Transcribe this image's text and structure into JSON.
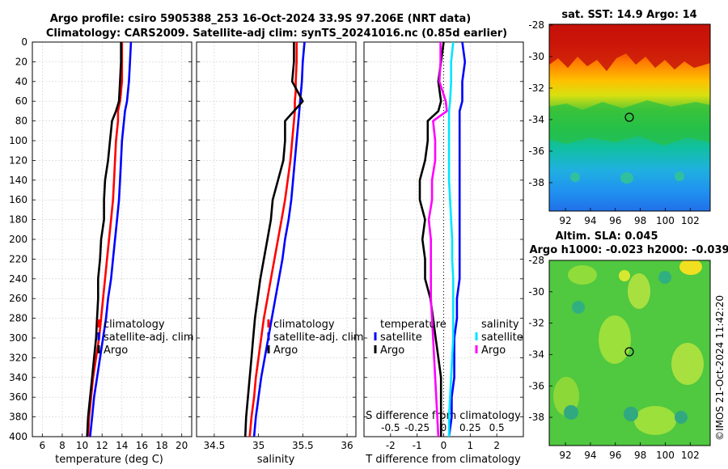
{
  "title_line1": "Argo profile: csiro 5905388_253 16-Oct-2024 33.9S 97.206E (NRT data)",
  "title_line2": "Climatology: CARS2009. Satellite-adj clim: synTS_20241016.nc (0.85d earlier)",
  "footer_credit": "©IMOS 21-Oct-2024 11:42:20",
  "colors": {
    "climatology": "#ff0000",
    "satellite": "#0000ff",
    "argo": "#000000",
    "sal_sat": "#00e5ff",
    "sal_argo": "#ff00ff"
  },
  "depth_ticks": [
    "0",
    "20",
    "40",
    "60",
    "80",
    "100",
    "120",
    "140",
    "160",
    "180",
    "200",
    "220",
    "240",
    "260",
    "280",
    "300",
    "320",
    "340",
    "360",
    "380",
    "400"
  ],
  "chart_data": [
    {
      "type": "line",
      "name": "temperature",
      "xlabel": "temperature (deg C)",
      "ylabel": "depth",
      "xlim": [
        5,
        21
      ],
      "ylim": [
        400,
        0
      ],
      "xticks": [
        "6",
        "8",
        "10",
        "12",
        "14",
        "16",
        "18",
        "20"
      ],
      "xtick_values": [
        6,
        8,
        10,
        12,
        14,
        16,
        18,
        20
      ],
      "legend": [
        "climatology",
        "satellite-adj. clim",
        "Argo"
      ],
      "depth": [
        0,
        20,
        40,
        60,
        70,
        80,
        100,
        120,
        140,
        160,
        180,
        200,
        220,
        240,
        260,
        280,
        300,
        320,
        340,
        360,
        380,
        400
      ],
      "series": [
        {
          "name": "climatology",
          "values": [
            14.0,
            14.0,
            14.0,
            13.8,
            13.6,
            13.6,
            13.4,
            13.3,
            13.2,
            13.1,
            12.9,
            12.7,
            12.5,
            12.3,
            12.1,
            11.9,
            11.7,
            11.4,
            11.1,
            10.9,
            10.7,
            10.6
          ]
        },
        {
          "name": "satellite-adj. clim",
          "values": [
            14.9,
            14.8,
            14.7,
            14.5,
            14.3,
            14.2,
            14.0,
            13.9,
            13.8,
            13.7,
            13.5,
            13.3,
            13.1,
            12.9,
            12.6,
            12.4,
            12.1,
            11.8,
            11.5,
            11.2,
            11.0,
            10.8
          ]
        },
        {
          "name": "Argo",
          "values": [
            13.9,
            13.9,
            13.8,
            13.7,
            13.4,
            13.0,
            12.8,
            12.6,
            12.3,
            12.2,
            12.2,
            11.9,
            11.8,
            11.6,
            11.6,
            11.5,
            11.4,
            11.2,
            11.0,
            10.8,
            10.6,
            10.5
          ]
        }
      ]
    },
    {
      "type": "line",
      "name": "salinity",
      "xlabel": "salinity",
      "xlim": [
        34.3,
        36.1
      ],
      "ylim": [
        400,
        0
      ],
      "xticks": [
        "34.5",
        "35",
        "35.5",
        "36"
      ],
      "xtick_values": [
        34.5,
        35,
        35.5,
        36
      ],
      "legend": [
        "climatology",
        "satellite-adj. clim",
        "Argo"
      ],
      "depth": [
        0,
        20,
        40,
        50,
        60,
        70,
        80,
        100,
        120,
        140,
        160,
        180,
        200,
        220,
        240,
        260,
        280,
        300,
        320,
        340,
        360,
        380,
        400
      ],
      "series": [
        {
          "name": "climatology",
          "values": [
            35.43,
            35.43,
            35.42,
            35.42,
            35.41,
            35.41,
            35.4,
            35.38,
            35.36,
            35.33,
            35.3,
            35.26,
            35.22,
            35.18,
            35.14,
            35.1,
            35.06,
            35.03,
            35.0,
            34.97,
            34.95,
            34.92,
            34.9
          ]
        },
        {
          "name": "satellite-adj. clim",
          "values": [
            35.52,
            35.5,
            35.49,
            35.48,
            35.47,
            35.46,
            35.45,
            35.43,
            35.41,
            35.39,
            35.37,
            35.34,
            35.3,
            35.27,
            35.23,
            35.19,
            35.15,
            35.11,
            35.07,
            35.03,
            35.0,
            34.97,
            34.95
          ]
        },
        {
          "name": "Argo",
          "values": [
            35.4,
            35.4,
            35.38,
            35.44,
            35.5,
            35.4,
            35.3,
            35.3,
            35.28,
            35.22,
            35.16,
            35.14,
            35.1,
            35.06,
            35.02,
            34.99,
            34.96,
            34.94,
            34.92,
            34.9,
            34.88,
            34.86,
            34.85
          ]
        }
      ]
    },
    {
      "type": "line",
      "name": "difference from climatology",
      "xlabel": "T difference from climatology",
      "top_label": "S difference from climatology",
      "xlim": [
        -3,
        3
      ],
      "ylim": [
        400,
        0
      ],
      "xticks": [
        "-2",
        "-1",
        "0",
        "1",
        "2"
      ],
      "xtick_values": [
        -2,
        -1,
        0,
        1,
        2
      ],
      "sticks": [
        "-0.5",
        "-0.25",
        "0",
        "0.25",
        "0.5"
      ],
      "stick_values": [
        -0.5,
        -0.25,
        0,
        0.25,
        0.5
      ],
      "legend_temperature": "temperature",
      "legend_salinity": "salinity",
      "legend": [
        "satellite",
        "Argo",
        "satellite",
        "Argo"
      ],
      "depth": [
        0,
        20,
        40,
        60,
        70,
        80,
        100,
        120,
        140,
        160,
        180,
        200,
        220,
        240,
        260,
        280,
        300,
        320,
        340,
        360,
        380,
        400
      ],
      "series": [
        {
          "name": "T satellite",
          "values": [
            0.7,
            0.8,
            0.7,
            0.7,
            0.6,
            0.6,
            0.6,
            0.6,
            0.6,
            0.6,
            0.6,
            0.6,
            0.6,
            0.6,
            0.5,
            0.5,
            0.4,
            0.4,
            0.4,
            0.3,
            0.3,
            0.2
          ]
        },
        {
          "name": "T Argo",
          "values": [
            0.0,
            -0.1,
            -0.2,
            -0.1,
            -0.2,
            -0.6,
            -0.6,
            -0.7,
            -0.9,
            -0.9,
            -0.7,
            -0.8,
            -0.7,
            -0.7,
            -0.5,
            -0.4,
            -0.3,
            -0.2,
            -0.1,
            -0.1,
            -0.1,
            -0.1
          ]
        },
        {
          "name": "S satellite",
          "values": [
            0.09,
            0.07,
            0.07,
            0.06,
            0.05,
            0.05,
            0.05,
            0.05,
            0.05,
            0.06,
            0.07,
            0.08,
            0.08,
            0.09,
            0.09,
            0.09,
            0.09,
            0.08,
            0.07,
            0.06,
            0.05,
            0.05
          ]
        },
        {
          "name": "S Argo",
          "values": [
            -0.03,
            -0.03,
            -0.04,
            0.02,
            0.03,
            -0.1,
            -0.08,
            -0.08,
            -0.11,
            -0.11,
            -0.14,
            -0.12,
            -0.12,
            -0.12,
            -0.12,
            -0.11,
            -0.1,
            -0.09,
            -0.08,
            -0.07,
            -0.06,
            -0.05
          ]
        }
      ]
    },
    {
      "type": "heatmap",
      "name": "sat. SST",
      "title": "sat. SST: 14.9 Argo: 14",
      "xticks": [
        "92",
        "94",
        "96",
        "98",
        "100",
        "102"
      ],
      "yticks": [
        "-28",
        "-30",
        "-32",
        "-34",
        "-36",
        "-38"
      ],
      "argo_position": {
        "lon": 97.2,
        "lat": -33.9
      }
    },
    {
      "type": "heatmap",
      "name": "Altim. SLA",
      "title_line1": "Altim. SLA: 0.045",
      "title_line2": "Argo h1000: -0.023 h2000: -0.039",
      "xticks": [
        "92",
        "94",
        "96",
        "98",
        "100",
        "102"
      ],
      "yticks": [
        "-28",
        "-30",
        "-32",
        "-34",
        "-36",
        "-38"
      ],
      "argo_position": {
        "lon": 97.2,
        "lat": -33.9
      }
    }
  ]
}
